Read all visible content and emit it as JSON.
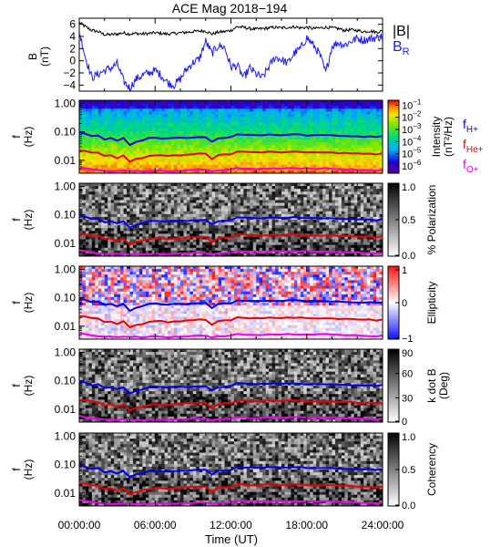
{
  "title": "ACE Mag 2018−194",
  "colors": {
    "b_total": "#000000",
    "b_r": "#1a1aff",
    "f_h": "#0000ee",
    "f_he": "#ee0000",
    "f_o": "#ee00ee"
  },
  "legend_top": {
    "b_total": "|B|",
    "b_r_main": "B",
    "b_r_sub": "R"
  },
  "legend_freq": {
    "f_h_main": "f",
    "f_h_sub": "H+",
    "f_he_main": "f",
    "f_he_sub": "He+",
    "f_o_main": "f",
    "f_o_sub": "O+"
  },
  "x_axis": {
    "label": "Time (UT)",
    "range_hours": [
      0,
      24
    ],
    "ticks": [
      {
        "hour": 0,
        "label": "00:00:00"
      },
      {
        "hour": 6,
        "label": "06:00:00"
      },
      {
        "hour": 12,
        "label": "12:00:00"
      },
      {
        "hour": 18,
        "label": "18:00:00"
      },
      {
        "hour": 24,
        "label": "24:00:00"
      }
    ]
  },
  "chart_data": [
    {
      "type": "line",
      "ylabel_line1": "B",
      "ylabel_line2": "(nT)",
      "ylim": [
        -5,
        7
      ],
      "yticks": [
        {
          "v": 6,
          "label": "6"
        },
        {
          "v": 4,
          "label": "4"
        },
        {
          "v": 2,
          "label": "2"
        },
        {
          "v": 0,
          "label": "0"
        },
        {
          "v": -2,
          "label": "−2"
        },
        {
          "v": -4,
          "label": "−4"
        }
      ],
      "series": [
        {
          "name": "|B|",
          "color_key": "b_total",
          "x": [
            0,
            0.5,
            1,
            1.5,
            2,
            2.5,
            3,
            3.5,
            4,
            4.5,
            5,
            5.5,
            6,
            6.5,
            7,
            7.5,
            8,
            8.5,
            9,
            9.5,
            10,
            10.5,
            11,
            11.5,
            12,
            12.5,
            13,
            13.5,
            14,
            14.5,
            15,
            15.5,
            16,
            16.5,
            17,
            17.5,
            18,
            18.5,
            19,
            19.5,
            20,
            20.5,
            21,
            21.5,
            22,
            22.5,
            23,
            23.5,
            24
          ],
          "y": [
            6.3,
            5.6,
            5.0,
            4.8,
            4.3,
            4.3,
            4.4,
            4.6,
            4.4,
            4.5,
            4.4,
            4.5,
            4.6,
            4.5,
            4.4,
            4.5,
            4.6,
            4.7,
            4.8,
            4.9,
            4.9,
            4.4,
            4.7,
            4.8,
            5.0,
            5.6,
            5.5,
            5.3,
            5.2,
            5.3,
            5.4,
            5.5,
            5.4,
            5.5,
            5.6,
            5.4,
            5.5,
            5.3,
            5.4,
            5.5,
            5.4,
            5.3,
            5.0,
            5.1,
            5.0,
            4.8,
            4.9,
            4.7,
            4.9
          ]
        },
        {
          "name": "B_R",
          "color_key": "b_r",
          "x": [
            0,
            0.5,
            1,
            1.5,
            2,
            2.5,
            3,
            3.5,
            4,
            4.5,
            5,
            5.5,
            6,
            6.5,
            7,
            7.5,
            8,
            8.5,
            9,
            9.5,
            10,
            10.5,
            11,
            11.5,
            12,
            12.5,
            13,
            13.5,
            14,
            14.5,
            15,
            15.5,
            16,
            16.5,
            17,
            17.5,
            18,
            18.5,
            19,
            19.5,
            20,
            20.5,
            21,
            21.5,
            22,
            22.5,
            23,
            23.5,
            24
          ],
          "y": [
            4.8,
            0.5,
            -2.8,
            -2.2,
            -1.6,
            -1.2,
            -0.5,
            -3.3,
            -4.5,
            -3.0,
            -2.4,
            -2.0,
            -1.6,
            -2.4,
            -3.6,
            -4.0,
            -3.0,
            -1.4,
            -0.3,
            0.3,
            3.2,
            1.2,
            2.5,
            2.2,
            -1.0,
            -0.8,
            -2.8,
            -1.2,
            -2.2,
            -2.8,
            -1.0,
            0.6,
            0.2,
            -0.4,
            1.2,
            2.0,
            3.8,
            2.6,
            1.2,
            -2.0,
            2.4,
            3.0,
            2.6,
            3.2,
            3.7,
            3.4,
            3.6,
            3.8,
            4.0
          ]
        }
      ]
    },
    {
      "type": "heatmap",
      "name": "power spectrum",
      "ylabel_line1": "f",
      "ylabel_line2": "(Hz)",
      "ylim": [
        0.0035,
        1.3
      ],
      "yscale": "log",
      "yticks": [
        {
          "v": 1,
          "label": "1.00"
        },
        {
          "v": 0.1,
          "label": "0.10"
        },
        {
          "v": 0.01,
          "label": "0.01"
        }
      ],
      "colorbar": {
        "label_line1": "Intensity",
        "label_line2": "(nT²/Hz)",
        "ticks": [
          {
            "v": -1,
            "base": "10",
            "exp": "−1"
          },
          {
            "v": -2,
            "base": "10",
            "exp": "−2"
          },
          {
            "v": -3,
            "base": "10",
            "exp": "−3"
          },
          {
            "v": -4,
            "base": "10",
            "exp": "−4"
          },
          {
            "v": -5,
            "base": "10",
            "exp": "−5"
          },
          {
            "v": -6,
            "base": "10",
            "exp": "−6"
          }
        ],
        "range": [
          -6.6,
          -0.6
        ],
        "colormap": "rainbow"
      }
    },
    {
      "type": "heatmap",
      "name": "polarization",
      "ylabel_line1": "f",
      "ylabel_line2": "(Hz)",
      "ylim": [
        0.0035,
        1.3
      ],
      "yscale": "log",
      "yticks": [
        {
          "v": 1,
          "label": "1.00"
        },
        {
          "v": 0.1,
          "label": "0.10"
        },
        {
          "v": 0.01,
          "label": "0.01"
        }
      ],
      "colorbar": {
        "label_line1": "% Polarization",
        "label_line2": "",
        "ticks": [
          {
            "v": 1,
            "label": "1.0"
          },
          {
            "v": 0.5,
            "label": "0.5"
          },
          {
            "v": 0,
            "label": "0.0"
          }
        ],
        "range": [
          0,
          1
        ],
        "colormap": "gray"
      }
    },
    {
      "type": "heatmap",
      "name": "ellipticity",
      "ylabel_line1": "f",
      "ylabel_line2": "(Hz)",
      "ylim": [
        0.0035,
        1.3
      ],
      "yscale": "log",
      "yticks": [
        {
          "v": 1,
          "label": "1.00"
        },
        {
          "v": 0.1,
          "label": "0.10"
        },
        {
          "v": 0.01,
          "label": "0.01"
        }
      ],
      "colorbar": {
        "label_line1": "Ellipticity",
        "label_line2": "",
        "ticks": [
          {
            "v": 1,
            "label": "1"
          },
          {
            "v": 0,
            "label": "0"
          },
          {
            "v": -1,
            "label": "−1"
          }
        ],
        "range": [
          -1,
          1
        ],
        "colormap": "bwr"
      }
    },
    {
      "type": "heatmap",
      "name": "k dot B",
      "ylabel_line1": "f",
      "ylabel_line2": "(Hz)",
      "ylim": [
        0.0035,
        1.3
      ],
      "yscale": "log",
      "yticks": [
        {
          "v": 1,
          "label": "1.00"
        },
        {
          "v": 0.1,
          "label": "0.10"
        },
        {
          "v": 0.01,
          "label": "0.01"
        }
      ],
      "colorbar": {
        "label_line1": "k dot B",
        "label_line2": "(Deg)",
        "ticks": [
          {
            "v": 90,
            "label": "90"
          },
          {
            "v": 60,
            "label": "60"
          },
          {
            "v": 30,
            "label": "30"
          },
          {
            "v": 0,
            "label": "0"
          }
        ],
        "range": [
          0,
          90
        ],
        "colormap": "gray"
      }
    },
    {
      "type": "heatmap",
      "name": "coherency",
      "ylabel_line1": "f",
      "ylabel_line2": "(Hz)",
      "ylim": [
        0.0035,
        1.3
      ],
      "yscale": "log",
      "yticks": [
        {
          "v": 1,
          "label": "1.00"
        },
        {
          "v": 0.1,
          "label": "0.10"
        },
        {
          "v": 0.01,
          "label": "0.01"
        }
      ],
      "colorbar": {
        "label_line1": "Coherency",
        "label_line2": "",
        "ticks": [
          {
            "v": 1,
            "label": "1.0"
          },
          {
            "v": 0.5,
            "label": "0.5"
          },
          {
            "v": 0,
            "label": "0.0"
          }
        ],
        "range": [
          0,
          1
        ],
        "colormap": "gray"
      }
    }
  ],
  "gyrofrequency_lines": {
    "x": [
      0,
      0.5,
      1,
      1.5,
      2,
      2.5,
      3,
      3.5,
      4,
      4.5,
      5,
      5.5,
      6,
      6.5,
      7,
      7.5,
      8,
      8.5,
      9,
      9.5,
      10,
      10.5,
      11,
      11.5,
      12,
      12.5,
      13,
      13.5,
      14,
      14.5,
      15,
      15.5,
      16,
      16.5,
      17,
      17.5,
      18,
      18.5,
      19,
      19.5,
      20,
      20.5,
      21,
      21.5,
      22,
      22.5,
      23,
      23.5,
      24
    ],
    "f_h": [
      0.095,
      0.085,
      0.07,
      0.075,
      0.055,
      0.06,
      0.05,
      0.06,
      0.035,
      0.045,
      0.05,
      0.06,
      0.062,
      0.06,
      0.058,
      0.06,
      0.062,
      0.06,
      0.063,
      0.065,
      0.065,
      0.045,
      0.06,
      0.062,
      0.065,
      0.082,
      0.08,
      0.078,
      0.076,
      0.078,
      0.08,
      0.08,
      0.078,
      0.08,
      0.082,
      0.08,
      0.075,
      0.078,
      0.076,
      0.077,
      0.075,
      0.074,
      0.072,
      0.07,
      0.07,
      0.068,
      0.07,
      0.066,
      0.07
    ],
    "f_he": [
      0.022,
      0.021,
      0.019,
      0.018,
      0.014,
      0.015,
      0.012,
      0.015,
      0.009,
      0.011,
      0.012,
      0.014,
      0.015,
      0.015,
      0.014,
      0.015,
      0.015,
      0.016,
      0.016,
      0.017,
      0.017,
      0.011,
      0.015,
      0.016,
      0.016,
      0.02,
      0.02,
      0.019,
      0.019,
      0.019,
      0.02,
      0.02,
      0.019,
      0.02,
      0.02,
      0.02,
      0.019,
      0.019,
      0.019,
      0.019,
      0.019,
      0.018,
      0.018,
      0.018,
      0.017,
      0.017,
      0.017,
      0.016,
      0.017
    ],
    "f_o": [
      0.0058,
      0.0052,
      0.0047,
      0.0045,
      0.0042,
      0.0042,
      0.0041,
      0.0043,
      0.0041,
      0.0042,
      0.0041,
      0.0042,
      0.0043,
      0.0042,
      0.0041,
      0.0042,
      0.0043,
      0.0044,
      0.0045,
      0.0046,
      0.0046,
      0.0041,
      0.0044,
      0.0045,
      0.0047,
      0.0052,
      0.0051,
      0.005,
      0.0049,
      0.005,
      0.0051,
      0.0052,
      0.0051,
      0.0052,
      0.0052,
      0.0051,
      0.0052,
      0.005,
      0.0051,
      0.0052,
      0.0051,
      0.005,
      0.0047,
      0.0048,
      0.0047,
      0.0045,
      0.0046,
      0.0044,
      0.0046
    ]
  }
}
